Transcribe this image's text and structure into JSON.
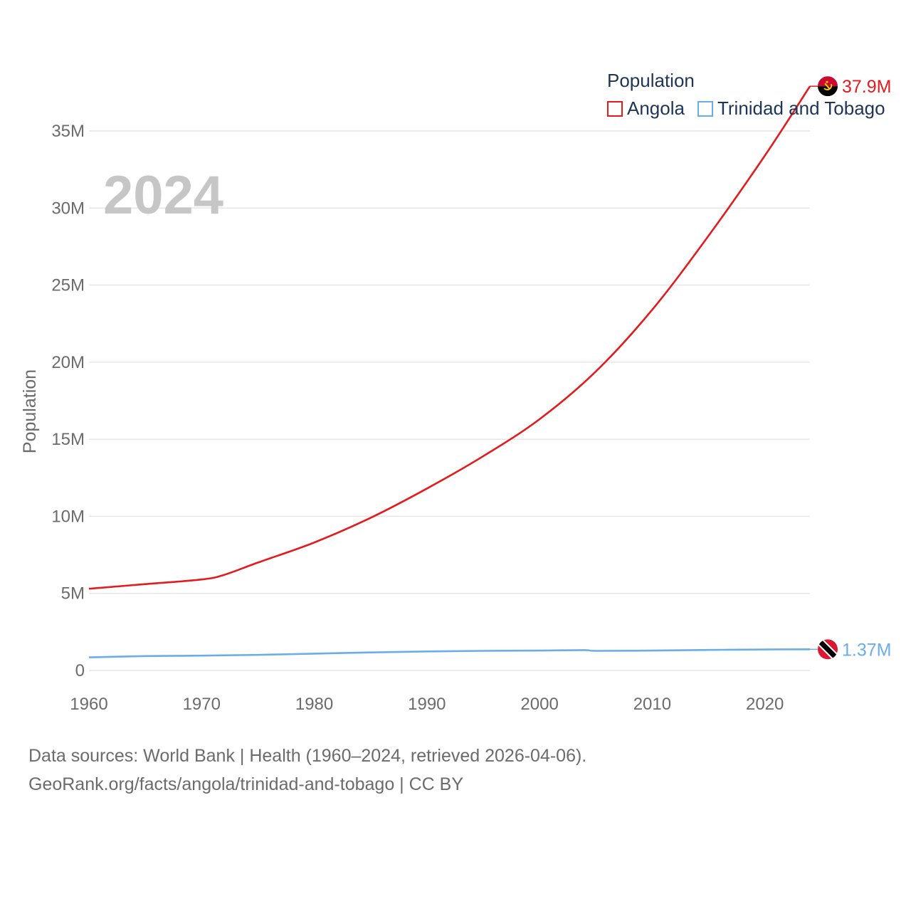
{
  "legend": {
    "title": "Population",
    "items": [
      {
        "label": "Angola",
        "color": "#e41a1c"
      },
      {
        "label": "Trinidad and Tobago",
        "color": "#6aaee8"
      }
    ]
  },
  "source": {
    "line1": "Data sources: World Bank | Health (1960–2024, retrieved 2026-04-06).",
    "line2": "GeoRank.org/facts/angola/trinidad-and-tobago | CC BY"
  },
  "chart_data": {
    "type": "line",
    "year_label": "2024",
    "ylabel": "Population",
    "xlabel": "",
    "xlim": [
      1960,
      2024
    ],
    "ylim": [
      0,
      38000000
    ],
    "x_ticks": [
      1960,
      1970,
      1980,
      1990,
      2000,
      2010,
      2020
    ],
    "x_tick_labels": [
      "1960",
      "1970",
      "1980",
      "1990",
      "2000",
      "2010",
      "2020"
    ],
    "y_ticks": [
      0,
      5000000,
      10000000,
      15000000,
      20000000,
      25000000,
      30000000,
      35000000
    ],
    "y_tick_labels": [
      "0",
      "5M",
      "10M",
      "15M",
      "20M",
      "25M",
      "30M",
      "35M"
    ],
    "grid": true,
    "series": [
      {
        "name": "Angola",
        "color": "#e41a1c",
        "end_label": "37.9M",
        "flag_icon": "angola-flag-icon",
        "x": [
          1960,
          1965,
          1970,
          1972,
          1975,
          1980,
          1985,
          1990,
          1995,
          2000,
          2005,
          2010,
          2015,
          2020,
          2024
        ],
        "y": [
          5300000,
          5600000,
          5900000,
          6200000,
          7000000,
          8300000,
          9900000,
          11800000,
          13900000,
          16300000,
          19400000,
          23400000,
          28200000,
          33400000,
          37900000
        ]
      },
      {
        "name": "Trinidad and Tobago",
        "color": "#6aaee8",
        "end_label": "1.37M",
        "flag_icon": "trinidad-and-tobago-flag-icon",
        "x": [
          1960,
          1965,
          1970,
          1975,
          1980,
          1985,
          1990,
          1995,
          2000,
          2004,
          2005,
          2010,
          2015,
          2020,
          2024
        ],
        "y": [
          850000,
          930000,
          960000,
          1010000,
          1090000,
          1170000,
          1230000,
          1270000,
          1290000,
          1320000,
          1270000,
          1290000,
          1330000,
          1360000,
          1370000
        ]
      }
    ]
  }
}
